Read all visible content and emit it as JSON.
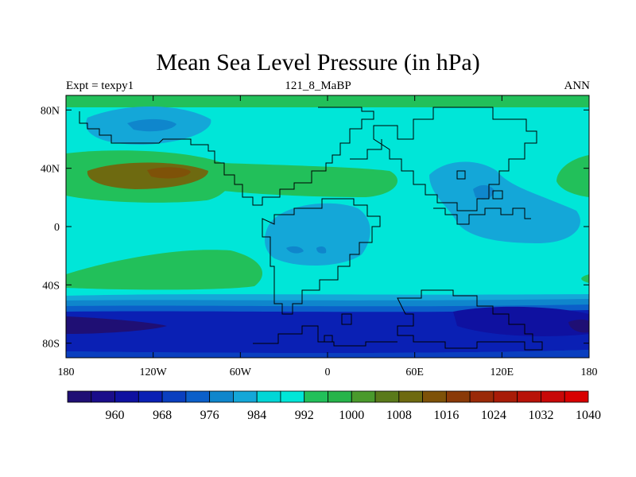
{
  "title": "Mean Sea Level Pressure (in hPa)",
  "left_label": "Expt = texpy1",
  "center_label": "121_8_MaBP",
  "right_label": "ANN",
  "map": {
    "lon_range": [
      -180,
      180
    ],
    "lat_range": [
      -90,
      90
    ],
    "lat_ticks": [
      {
        "value": 80,
        "label": "80N"
      },
      {
        "value": 40,
        "label": "40N"
      },
      {
        "value": 0,
        "label": "0"
      },
      {
        "value": -40,
        "label": "40S"
      },
      {
        "value": -80,
        "label": "80S"
      }
    ],
    "lon_ticks": [
      {
        "value": -180,
        "label": "180"
      },
      {
        "value": -120,
        "label": "120W"
      },
      {
        "value": -60,
        "label": "60W"
      },
      {
        "value": 0,
        "label": "0"
      },
      {
        "value": 60,
        "label": "60E"
      },
      {
        "value": 120,
        "label": "120E"
      },
      {
        "value": 180,
        "label": "180"
      }
    ],
    "background_color": "#00e6d8"
  },
  "colorbar": {
    "colors": [
      "#1f0f74",
      "#1a0d8a",
      "#0f11a0",
      "#0a20b4",
      "#0a3fbf",
      "#0b5fc9",
      "#0f86cc",
      "#14a7d8",
      "#00d6d6",
      "#00e6d8",
      "#22c05a",
      "#26b44a",
      "#4a9a2c",
      "#5a7a1a",
      "#6e6a10",
      "#7e5208",
      "#8a3a08",
      "#9a2a08",
      "#a81c08",
      "#b81208",
      "#c80808",
      "#d80000"
    ],
    "labels": [
      {
        "text": "960",
        "boundary": 2
      },
      {
        "text": "968",
        "boundary": 4
      },
      {
        "text": "976",
        "boundary": 6
      },
      {
        "text": "984",
        "boundary": 8
      },
      {
        "text": "992",
        "boundary": 10
      },
      {
        "text": "1000",
        "boundary": 12
      },
      {
        "text": "1008",
        "boundary": 14
      },
      {
        "text": "1016",
        "boundary": 16
      },
      {
        "text": "1024",
        "boundary": 18
      },
      {
        "text": "1032",
        "boundary": 20
      },
      {
        "text": "1040",
        "boundary": 22
      }
    ]
  }
}
